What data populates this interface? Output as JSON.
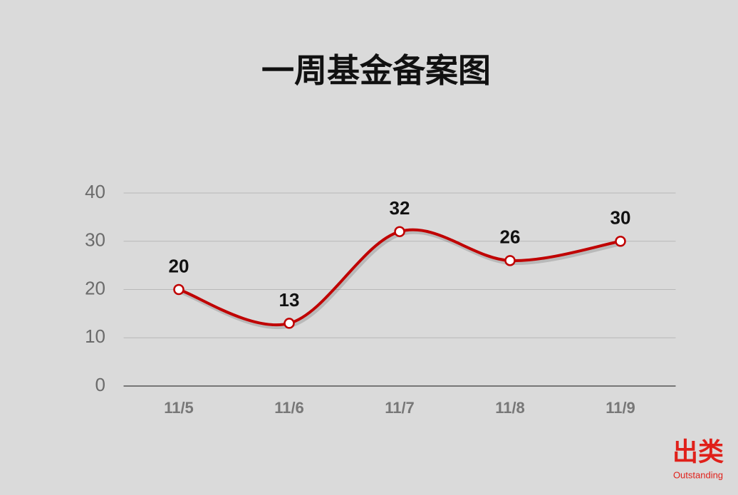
{
  "chart_data": {
    "type": "line",
    "title": "一周基金备案图",
    "categories": [
      "11/5",
      "11/6",
      "11/7",
      "11/8",
      "11/9"
    ],
    "values": [
      20,
      13,
      32,
      26,
      30
    ],
    "color": "#c00000",
    "ylim": [
      0,
      40
    ],
    "yticks": [
      0,
      10,
      20,
      30,
      40
    ],
    "grid": true,
    "smooth": true,
    "annotations": [
      "出类",
      "Outstanding"
    ]
  }
}
